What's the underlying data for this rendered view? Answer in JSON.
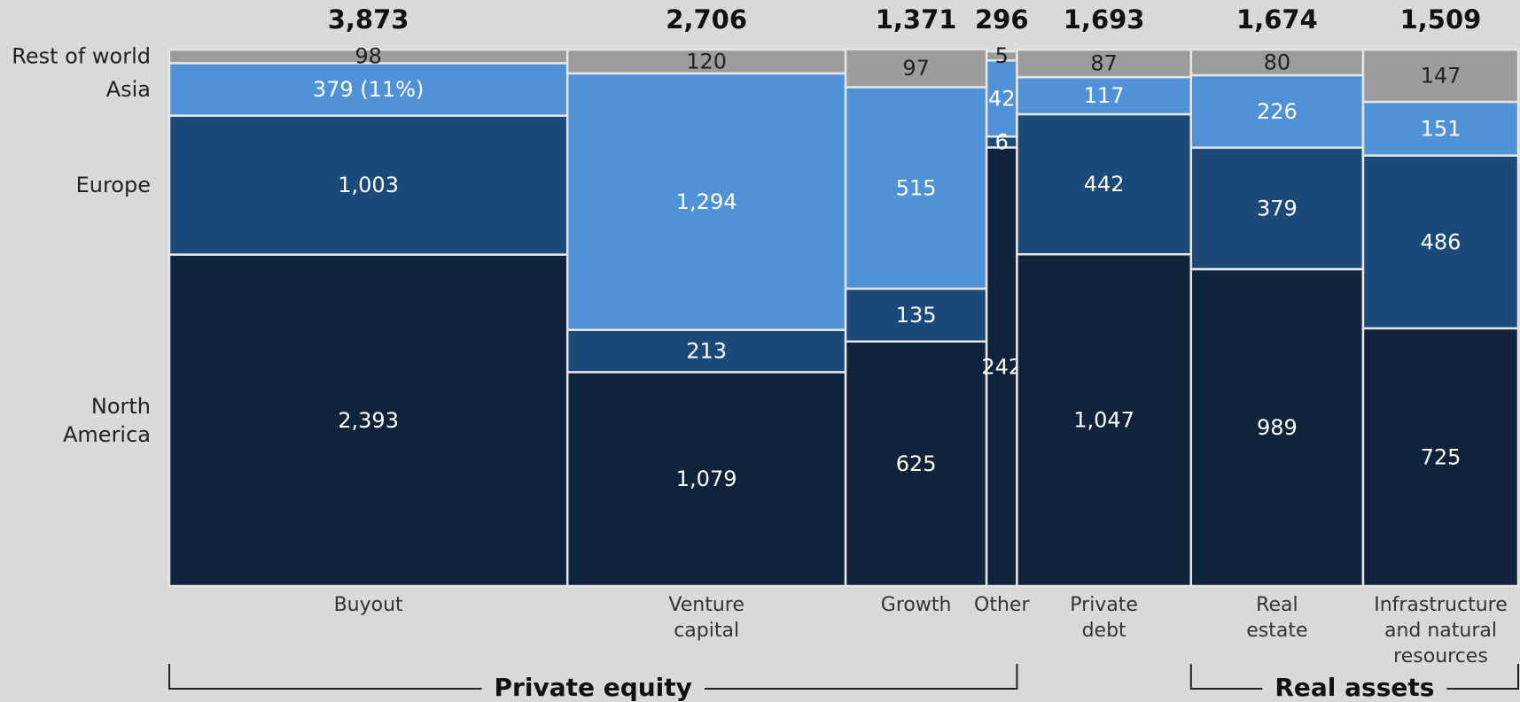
{
  "chart_data": {
    "type": "mekko",
    "regions": [
      "North America",
      "Europe",
      "Asia",
      "Rest of world"
    ],
    "region_labels": [
      [
        "North",
        "America"
      ],
      [
        "Europe"
      ],
      [
        "Asia"
      ],
      [
        "Rest of world"
      ]
    ],
    "colors": {
      "North America": "#0f233b",
      "Europe": "#1b4a7a",
      "Asia": "#4f92d8",
      "Rest of world": "#9c9c9c"
    },
    "categories": [
      {
        "name": "Buyout",
        "label_lines": [
          "Buyout"
        ],
        "total": 3873,
        "total_label": "3,873",
        "values": {
          "North America": 2393,
          "Europe": 1003,
          "Asia": 379,
          "Rest of world": 98
        },
        "labels": {
          "North America": "2,393",
          "Europe": "1,003",
          "Asia": "379 (11%)",
          "Rest of world": "98"
        }
      },
      {
        "name": "Venture capital",
        "label_lines": [
          "Venture",
          "capital"
        ],
        "total": 2706,
        "total_label": "2,706",
        "values": {
          "North America": 1079,
          "Europe": 213,
          "Asia": 1294,
          "Rest of world": 120
        },
        "labels": {
          "North America": "1,079",
          "Europe": "213",
          "Asia": "1,294",
          "Rest of world": "120"
        }
      },
      {
        "name": "Growth",
        "label_lines": [
          "Growth"
        ],
        "total": 1371,
        "total_label": "1,371",
        "values": {
          "North America": 625,
          "Europe": 135,
          "Asia": 515,
          "Rest of world": 97
        },
        "labels": {
          "North America": "625",
          "Europe": "135",
          "Asia": "515",
          "Rest of world": "97"
        }
      },
      {
        "name": "Other",
        "label_lines": [
          "Other"
        ],
        "total": 296,
        "total_label": "296",
        "values": {
          "North America": 242,
          "Europe": 6,
          "Asia": 42,
          "Rest of world": 5
        },
        "labels": {
          "North America": "242",
          "Europe": "6",
          "Asia": "42",
          "Rest of world": "5"
        }
      },
      {
        "name": "Private debt",
        "label_lines": [
          "Private",
          "debt"
        ],
        "total": 1693,
        "total_label": "1,693",
        "values": {
          "North America": 1047,
          "Europe": 442,
          "Asia": 117,
          "Rest of world": 87
        },
        "labels": {
          "North America": "1,047",
          "Europe": "442",
          "Asia": "117",
          "Rest of world": "87"
        }
      },
      {
        "name": "Real estate",
        "label_lines": [
          "Real",
          "estate"
        ],
        "total": 1674,
        "total_label": "1,674",
        "values": {
          "North America": 989,
          "Europe": 379,
          "Asia": 226,
          "Rest of world": 80
        },
        "labels": {
          "North America": "989",
          "Europe": "379",
          "Asia": "226",
          "Rest of world": "80"
        }
      },
      {
        "name": "Infrastructure and natural resources",
        "label_lines": [
          "Infrastructure",
          "and natural",
          "resources"
        ],
        "total": 1509,
        "total_label": "1,509",
        "values": {
          "North America": 725,
          "Europe": 486,
          "Asia": 151,
          "Rest of world": 147
        },
        "labels": {
          "North America": "725",
          "Europe": "486",
          "Asia": "151",
          "Rest of world": "147"
        }
      }
    ],
    "groups": [
      {
        "label": "Private equity",
        "from": 0,
        "to": 3
      },
      {
        "label": "Real assets",
        "from": 5,
        "to": 6
      }
    ]
  }
}
